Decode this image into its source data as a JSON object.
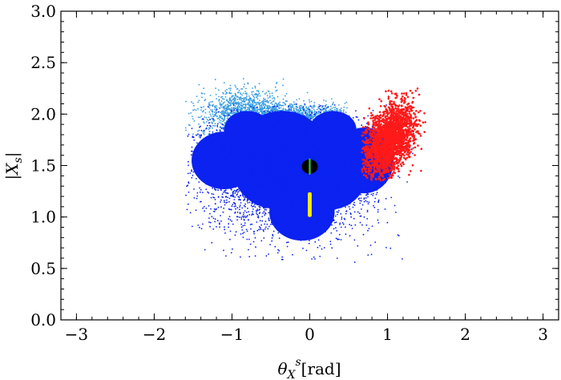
{
  "chart_data": {
    "type": "scatter",
    "title": "",
    "xlabel": {
      "main": "θ",
      "sub": "X",
      "sup": "s",
      "unit": "[rad]"
    },
    "ylabel": {
      "main": "|X",
      "sub": "s",
      "close": "|"
    },
    "xlim": [
      -3.2,
      3.2
    ],
    "ylim": [
      0.0,
      3.0
    ],
    "x_ticks": [
      {
        "value": -3,
        "label": "−3"
      },
      {
        "value": -2,
        "label": "−2"
      },
      {
        "value": -1,
        "label": "−1"
      },
      {
        "value": 0,
        "label": "0"
      },
      {
        "value": 1,
        "label": "1"
      },
      {
        "value": 2,
        "label": "2"
      },
      {
        "value": 3,
        "label": "3"
      }
    ],
    "y_ticks": [
      {
        "value": 0.0,
        "label": "0.0"
      },
      {
        "value": 0.5,
        "label": "0.5"
      },
      {
        "value": 1.0,
        "label": "1.0"
      },
      {
        "value": 1.5,
        "label": "1.5"
      },
      {
        "value": 2.0,
        "label": "2.0"
      },
      {
        "value": 2.5,
        "label": "2.5"
      },
      {
        "value": 3.0,
        "label": "3.0"
      }
    ],
    "grid": false,
    "series": [
      {
        "color": "#3a9ee0",
        "description": "light blue cloud",
        "region": {
          "x_range": [
            -1.6,
            0.5
          ],
          "y_range": [
            1.2,
            2.35
          ]
        }
      },
      {
        "color": "#0b22f0",
        "description": "blue cloud",
        "region": {
          "x_range": [
            -1.6,
            1.35
          ],
          "y_range": [
            0.55,
            2.1
          ]
        }
      },
      {
        "color": "#ff1a1a",
        "description": "red cloud",
        "region": {
          "x_range": [
            0.67,
            1.5
          ],
          "y_range": [
            1.35,
            2.25
          ]
        }
      },
      {
        "color": "#ffee00",
        "description": "yellow strip",
        "region": {
          "x_range": [
            -0.02,
            0.02
          ],
          "y_range": [
            0.99,
            1.25
          ]
        }
      },
      {
        "color": "#000000",
        "description": "black disc",
        "center": [
          0.0,
          1.49
        ]
      },
      {
        "color": "#2fbf3a",
        "description": "green strip",
        "region": {
          "x_range": [
            -0.01,
            0.01
          ],
          "y_range": [
            1.4,
            1.58
          ]
        }
      }
    ]
  }
}
